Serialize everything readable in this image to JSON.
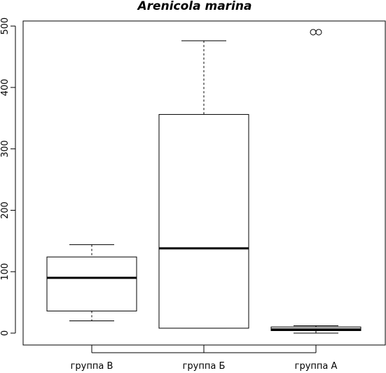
{
  "chart_data": {
    "type": "boxplot",
    "title": "Arenicola marina",
    "xlabel": "",
    "ylabel": "",
    "ylim": [
      -20,
      525
    ],
    "yticks": [
      0,
      100,
      200,
      300,
      400,
      500
    ],
    "grid": false,
    "categories": [
      "группа В",
      "группа Б",
      "группа А"
    ],
    "boxes": [
      {
        "category": "группа В",
        "whisker_low": 20,
        "q1": 36,
        "median": 90,
        "q3": 124,
        "whisker_high": 144,
        "outliers": []
      },
      {
        "category": "группа Б",
        "whisker_low": 8,
        "q1": 8,
        "median": 138,
        "q3": 356,
        "whisker_high": 476,
        "outliers": []
      },
      {
        "category": "группа А",
        "whisker_low": 0,
        "q1": 4,
        "median": 6,
        "q3": 10,
        "whisker_high": 12,
        "outliers": [
          490,
          490
        ]
      }
    ]
  }
}
